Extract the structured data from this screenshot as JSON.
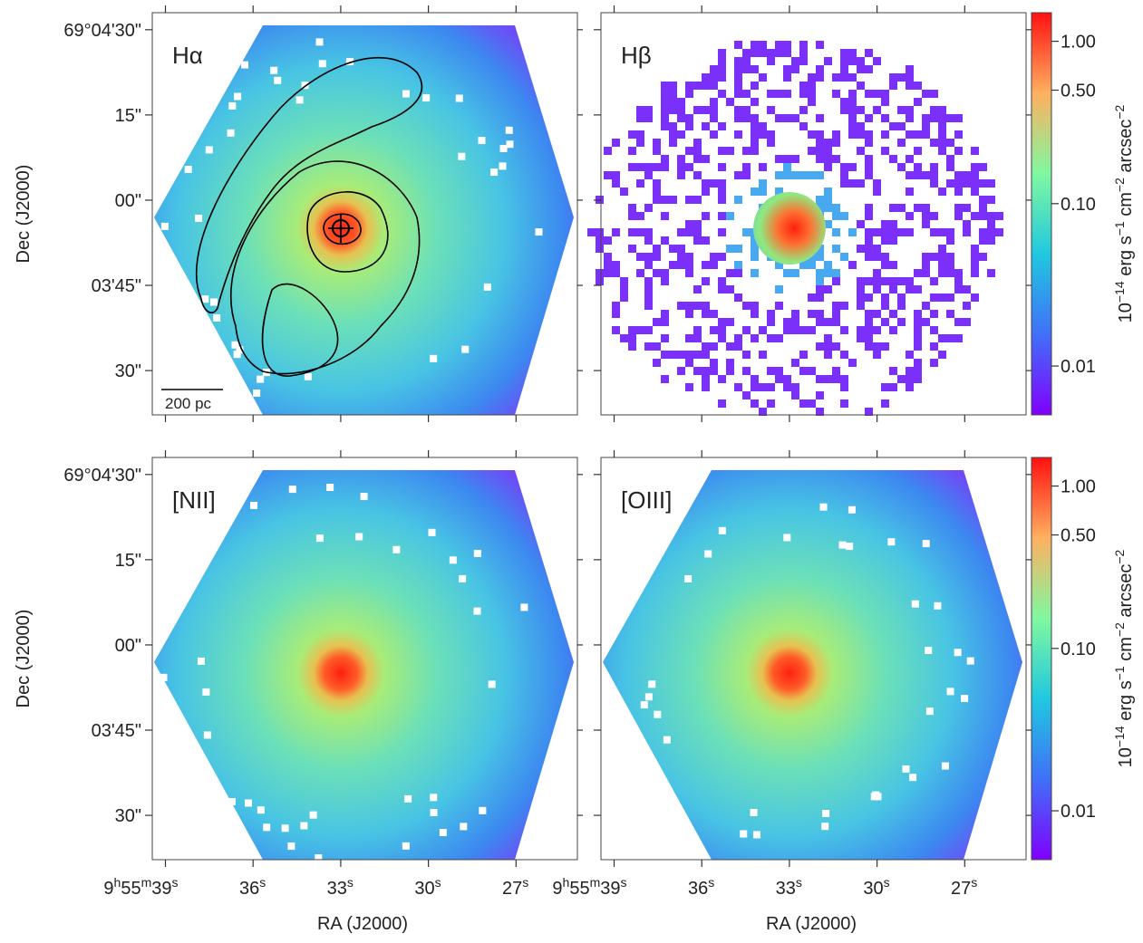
{
  "chart_data": {
    "type": "image",
    "x_label": "RA (J2000)",
    "y_label": "Dec (J2000)",
    "xlim": [
      39.45,
      24.9
    ],
    "ylim": [
      -37.8,
      33
    ],
    "xticks": [
      {
        "value": 39,
        "label": [
          [
            "9",
            false
          ],
          [
            "h",
            true
          ],
          [
            "55",
            false
          ],
          [
            "m",
            true
          ],
          [
            "39",
            false
          ],
          [
            "s",
            true
          ]
        ]
      },
      {
        "value": 36,
        "label": [
          [
            "36",
            false
          ],
          [
            "s",
            true
          ]
        ]
      },
      {
        "value": 33,
        "label": [
          [
            "33",
            false
          ],
          [
            "s",
            true
          ]
        ]
      },
      {
        "value": 30,
        "label": [
          [
            "30",
            false
          ],
          [
            "s",
            true
          ]
        ]
      },
      {
        "value": 27,
        "label": [
          [
            "27",
            false
          ],
          [
            "s",
            true
          ]
        ]
      }
    ],
    "yticks": [
      {
        "value": 30,
        "label": "69°04'30\""
      },
      {
        "value": 15,
        "label": "15\""
      },
      {
        "value": 0,
        "label": "00\""
      },
      {
        "value": -15,
        "label": "03'45\""
      },
      {
        "value": -30,
        "label": "30\""
      }
    ],
    "panels": [
      "Hα",
      "Hβ",
      "[NII]",
      "[OIII]"
    ],
    "scale_bar": "200 pc",
    "colorbar": {
      "scale": "log",
      "clim": [
        0.005,
        1.5
      ],
      "ticks": [
        0.01,
        {
          "value": 0.1,
          "label": "0.10"
        },
        {
          "value": 0.5,
          "label": "0.50"
        },
        {
          "value": 1,
          "label": "1.00"
        }
      ],
      "label": [
        [
          "10",
          false
        ],
        [
          "−14",
          true
        ],
        [
          " erg s",
          false
        ],
        [
          "−1",
          true
        ],
        [
          " cm",
          false
        ],
        [
          "−2",
          true
        ],
        [
          " arcsec",
          false
        ],
        [
          "−2",
          true
        ]
      ]
    }
  }
}
